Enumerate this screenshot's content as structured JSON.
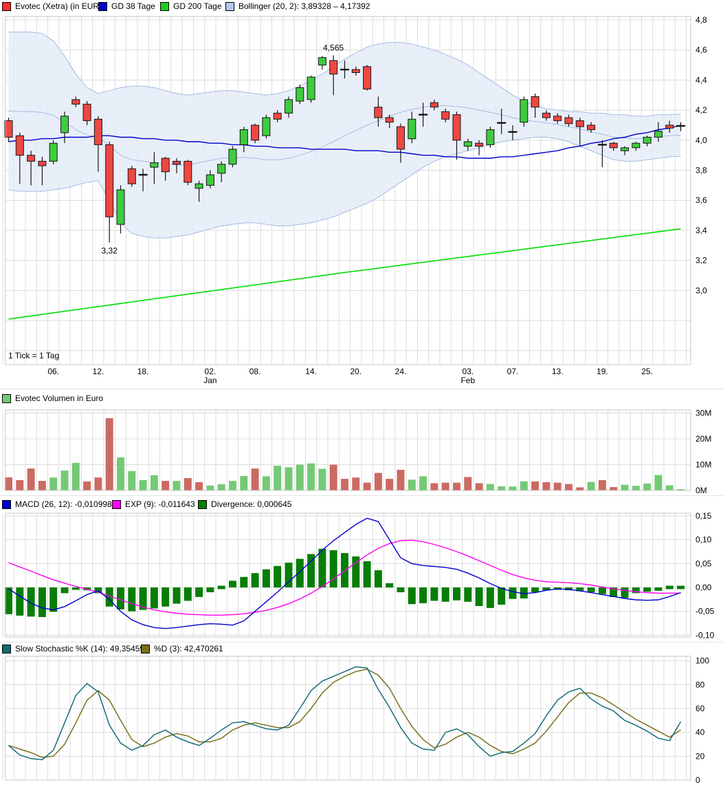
{
  "colors": {
    "candle_up": "#3ecc3e",
    "candle_down": "#ef4742",
    "candle_stroke": "#151515",
    "vol_up": "#74ca74",
    "vol_down": "#cb6a63",
    "macd_line": "#0000cc",
    "signal_line": "#ff00ee",
    "hist": "#077d07",
    "stoch_k": "#156d78",
    "stoch_d": "#7c701c",
    "gd38": "#0000cc",
    "gd200": "#00dd00",
    "band_fill": "#e4ebf8",
    "band_edge": "#a3bbe3",
    "grid": "#dcdcdc",
    "border": "#c6c6c6",
    "text_gray": "#8f8f8f"
  },
  "panels": {
    "price": {
      "legend": [
        {
          "swatch": "#ff2d2d",
          "label": "Evotec (Xetra) (in EUR)"
        },
        {
          "swatch": "#0000cc",
          "label": "GD 38 Tage"
        },
        {
          "swatch": "#22cc22",
          "label": "GD 200 Tage"
        },
        {
          "swatch": "#b4c6ea",
          "label": "Bollinger (20, 2): 3,89328 – 4,17392"
        }
      ],
      "footnote": "1 Tick = 1 Tag"
    },
    "volume": {
      "legend": [
        {
          "swatch": "#6fcc6f",
          "label": "Evotec Volumen in Euro"
        }
      ]
    },
    "macd": {
      "legend": [
        {
          "swatch": "#0000cc",
          "label": "MACD (26, 12): -0,010998"
        },
        {
          "swatch": "#ff00ff",
          "label": "EXP (9): -0,011643"
        },
        {
          "swatch": "#077d07",
          "label": "Divergence: 0,000645"
        }
      ]
    },
    "stoch": {
      "legend": [
        {
          "swatch": "#0e6b74",
          "label": "Slow Stochastic %K (14): 49,354594"
        },
        {
          "swatch": "#7a6e16",
          "label": "%D (3): 42,470261"
        }
      ]
    }
  },
  "chart_data": [
    {
      "type": "candlestick",
      "name": "Evotec (Xetra) (in EUR)",
      "x_unit": "1 Tick = 1 Tag",
      "ylim": [
        2.51,
        4.82
      ],
      "y_ticks": [
        {
          "v": 4.8,
          "l": "4,8"
        },
        {
          "v": 4.6,
          "l": "4,6"
        },
        {
          "v": 4.4,
          "l": "4,4"
        },
        {
          "v": 4.2,
          "l": "4,2"
        },
        {
          "v": 4.0,
          "l": "4,0"
        },
        {
          "v": 3.8,
          "l": "3,8"
        },
        {
          "v": 3.6,
          "l": "3,6"
        },
        {
          "v": 3.4,
          "l": "3,4"
        },
        {
          "v": 3.2,
          "l": "3,2"
        },
        {
          "v": 3.0,
          "l": "3,0"
        }
      ],
      "x_ticks": [
        {
          "i": 4,
          "l": "06."
        },
        {
          "i": 8,
          "l": "12."
        },
        {
          "i": 12,
          "l": "18."
        },
        {
          "i": 18,
          "l": "02.",
          "m": "Jan"
        },
        {
          "i": 22,
          "l": "08."
        },
        {
          "i": 27,
          "l": "14."
        },
        {
          "i": 31,
          "l": "20."
        },
        {
          "i": 35,
          "l": "24."
        },
        {
          "i": 41,
          "l": "03.",
          "m": "Feb"
        },
        {
          "i": 45,
          "l": "07."
        },
        {
          "i": 49,
          "l": "13."
        },
        {
          "i": 53,
          "l": "19."
        },
        {
          "i": 57,
          "l": "25."
        }
      ],
      "annotations": [
        {
          "i": 29,
          "text": "4,565",
          "pos": "above"
        },
        {
          "i": 9,
          "text": "3,32",
          "pos": "below"
        }
      ],
      "ohlc": [
        [
          4.13,
          4.15,
          3.99,
          4.02
        ],
        [
          4.03,
          4.05,
          3.71,
          3.9
        ],
        [
          3.9,
          3.93,
          3.7,
          3.86
        ],
        [
          3.86,
          3.89,
          3.7,
          3.83
        ],
        [
          3.86,
          4.0,
          3.84,
          3.98
        ],
        [
          4.05,
          4.19,
          3.98,
          4.16
        ],
        [
          4.27,
          4.29,
          4.22,
          4.24
        ],
        [
          4.24,
          4.26,
          4.1,
          4.13
        ],
        [
          4.14,
          4.16,
          3.79,
          3.97
        ],
        [
          3.97,
          3.99,
          3.32,
          3.49
        ],
        [
          3.44,
          3.7,
          3.38,
          3.67
        ],
        [
          3.81,
          3.83,
          3.69,
          3.71
        ],
        [
          3.77,
          3.81,
          3.66,
          3.77
        ],
        [
          3.82,
          3.92,
          3.71,
          3.85
        ],
        [
          3.88,
          3.89,
          3.73,
          3.79
        ],
        [
          3.86,
          3.88,
          3.78,
          3.84
        ],
        [
          3.86,
          3.87,
          3.7,
          3.72
        ],
        [
          3.68,
          3.73,
          3.59,
          3.71
        ],
        [
          3.7,
          3.8,
          3.68,
          3.77
        ],
        [
          3.78,
          3.86,
          3.72,
          3.84
        ],
        [
          3.84,
          3.96,
          3.82,
          3.94
        ],
        [
          3.97,
          4.09,
          3.92,
          4.07
        ],
        [
          4.1,
          4.11,
          3.98,
          4.0
        ],
        [
          4.03,
          4.17,
          4.01,
          4.15
        ],
        [
          4.18,
          4.2,
          4.12,
          4.14
        ],
        [
          4.18,
          4.29,
          4.15,
          4.27
        ],
        [
          4.26,
          4.37,
          4.24,
          4.35
        ],
        [
          4.27,
          4.43,
          4.25,
          4.42
        ],
        [
          4.5,
          4.56,
          4.47,
          4.55
        ],
        [
          4.53,
          4.565,
          4.3,
          4.44
        ],
        [
          4.47,
          4.53,
          4.41,
          4.47
        ],
        [
          4.47,
          4.49,
          4.43,
          4.45
        ],
        [
          4.49,
          4.5,
          4.33,
          4.34
        ],
        [
          4.22,
          4.29,
          4.09,
          4.15
        ],
        [
          4.15,
          4.17,
          4.08,
          4.12
        ],
        [
          4.09,
          4.11,
          3.85,
          3.94
        ],
        [
          4.01,
          4.19,
          3.98,
          4.14
        ],
        [
          4.17,
          4.25,
          4.09,
          4.17
        ],
        [
          4.25,
          4.27,
          4.2,
          4.22
        ],
        [
          4.19,
          4.21,
          4.12,
          4.14
        ],
        [
          4.17,
          4.19,
          3.87,
          4.0
        ],
        [
          3.96,
          4.01,
          3.93,
          3.99
        ],
        [
          3.98,
          4.0,
          3.9,
          3.96
        ],
        [
          3.97,
          4.09,
          3.95,
          4.07
        ],
        [
          4.12,
          4.21,
          4.04,
          4.11
        ],
        [
          4.06,
          4.1,
          4.0,
          4.05
        ],
        [
          4.12,
          4.29,
          4.09,
          4.27
        ],
        [
          4.29,
          4.31,
          4.15,
          4.22
        ],
        [
          4.18,
          4.2,
          4.13,
          4.15
        ],
        [
          4.16,
          4.18,
          4.11,
          4.13
        ],
        [
          4.15,
          4.17,
          4.09,
          4.11
        ],
        [
          4.13,
          4.15,
          3.96,
          4.09
        ],
        [
          4.1,
          4.12,
          4.05,
          4.07
        ],
        [
          3.97,
          4.0,
          3.82,
          3.97
        ],
        [
          3.98,
          3.99,
          3.93,
          3.95
        ],
        [
          3.93,
          3.96,
          3.9,
          3.95
        ],
        [
          3.95,
          3.99,
          3.93,
          3.98
        ],
        [
          3.98,
          4.03,
          3.96,
          4.02
        ],
        [
          4.02,
          4.12,
          3.99,
          4.06
        ],
        [
          4.1,
          4.13,
          4.05,
          4.08
        ],
        [
          4.1,
          4.12,
          4.06,
          4.09
        ]
      ],
      "gd38": [
        3.99,
        4.0,
        4.0,
        4.01,
        4.01,
        4.02,
        4.02,
        4.02,
        4.03,
        4.03,
        4.02,
        4.02,
        4.01,
        4.01,
        4.0,
        4.0,
        3.99,
        3.99,
        3.98,
        3.98,
        3.97,
        3.97,
        3.96,
        3.96,
        3.95,
        3.95,
        3.95,
        3.94,
        3.94,
        3.94,
        3.94,
        3.93,
        3.93,
        3.93,
        3.92,
        3.92,
        3.91,
        3.9,
        3.9,
        3.89,
        3.89,
        3.88,
        3.88,
        3.88,
        3.89,
        3.89,
        3.9,
        3.91,
        3.92,
        3.93,
        3.95,
        3.96,
        3.98,
        3.99,
        4.01,
        4.02,
        4.04,
        4.05,
        4.07,
        4.08,
        4.1
      ],
      "gd200": [
        {
          "i": 0,
          "v": 2.81
        },
        {
          "i": 30,
          "v": 3.12
        },
        {
          "i": 60,
          "v": 3.41
        }
      ],
      "bollinger_upper": [
        4.72,
        4.72,
        4.72,
        4.71,
        4.66,
        4.56,
        4.44,
        4.35,
        4.31,
        4.33,
        4.35,
        4.36,
        4.36,
        4.35,
        4.33,
        4.31,
        4.3,
        4.31,
        4.32,
        4.33,
        4.33,
        4.32,
        4.31,
        4.3,
        4.31,
        4.33,
        4.36,
        4.4,
        4.44,
        4.49,
        4.54,
        4.58,
        4.62,
        4.64,
        4.65,
        4.65,
        4.64,
        4.62,
        4.6,
        4.57,
        4.54,
        4.5,
        4.45,
        4.4,
        4.35,
        4.3,
        4.26,
        4.23,
        4.21,
        4.2,
        4.19,
        4.19,
        4.18,
        4.18,
        4.17,
        4.17,
        4.16,
        4.16,
        4.17,
        4.17,
        4.174
      ],
      "bollinger_lower": [
        3.67,
        3.66,
        3.66,
        3.66,
        3.67,
        3.68,
        3.7,
        3.72,
        3.73,
        3.6,
        3.45,
        3.38,
        3.36,
        3.35,
        3.35,
        3.36,
        3.37,
        3.39,
        3.41,
        3.43,
        3.44,
        3.45,
        3.45,
        3.44,
        3.43,
        3.43,
        3.44,
        3.45,
        3.47,
        3.49,
        3.52,
        3.55,
        3.58,
        3.62,
        3.67,
        3.72,
        3.77,
        3.82,
        3.86,
        3.89,
        3.91,
        3.93,
        3.95,
        3.97,
        3.99,
        4.0,
        4.01,
        4.02,
        4.02,
        4.01,
        3.99,
        3.96,
        3.93,
        3.9,
        3.87,
        3.86,
        3.86,
        3.87,
        3.88,
        3.89,
        3.893
      ],
      "bollinger_current": "3,89328 – 4,17392"
    },
    {
      "type": "bar",
      "name": "Evotec Volumen in Euro",
      "unit": "M",
      "y_ticks": [
        {
          "v": 30,
          "l": "30M"
        },
        {
          "v": 20,
          "l": "20M"
        },
        {
          "v": 10,
          "l": "10M"
        },
        {
          "v": 0,
          "l": "0M"
        }
      ],
      "values": [
        5.1,
        4.0,
        8.5,
        3.7,
        5.0,
        7.7,
        10.7,
        3.5,
        5.0,
        28.0,
        12.8,
        7.5,
        4.0,
        5.9,
        3.7,
        3.7,
        4.8,
        3.2,
        1.9,
        2.4,
        3.7,
        5.6,
        8.5,
        5.5,
        9.6,
        9.0,
        10.0,
        10.5,
        8.4,
        10.0,
        4.5,
        5.0,
        3.0,
        6.8,
        4.5,
        8.0,
        4.2,
        5.5,
        2.8,
        3.0,
        3.0,
        5.2,
        2.8,
        2.5,
        1.6,
        1.5,
        3.5,
        3.5,
        3.2,
        3.0,
        2.5,
        1.2,
        3.3,
        4.0,
        1.3,
        2.2,
        1.8,
        2.7,
        6.0,
        2.0,
        0.5
      ],
      "dir": [
        "d",
        "d",
        "d",
        "d",
        "u",
        "u",
        "u",
        "d",
        "d",
        "d",
        "u",
        "u",
        "u",
        "u",
        "d",
        "u",
        "d",
        "d",
        "u",
        "u",
        "u",
        "u",
        "d",
        "u",
        "u",
        "u",
        "u",
        "u",
        "u",
        "d",
        "d",
        "d",
        "d",
        "d",
        "d",
        "d",
        "u",
        "u",
        "d",
        "d",
        "d",
        "d",
        "d",
        "u",
        "u",
        "u",
        "u",
        "d",
        "d",
        "d",
        "d",
        "d",
        "u",
        "d",
        "d",
        "u",
        "u",
        "u",
        "u",
        "u",
        "u"
      ]
    },
    {
      "type": "macd",
      "name": "MACD (26, 12)",
      "y_ticks": [
        {
          "v": 0.15,
          "l": "0,15"
        },
        {
          "v": 0.1,
          "l": "0,10"
        },
        {
          "v": 0.05,
          "l": "0,05"
        },
        {
          "v": 0,
          "l": "0,00"
        },
        {
          "v": -0.05,
          "l": "-0,05"
        },
        {
          "v": -0.1,
          "l": "-0,10"
        }
      ],
      "macd_value": "-0,010998",
      "exp_value": "-0,011643",
      "divergence_value": "0,000645",
      "histogram": [
        -0.056,
        -0.059,
        -0.061,
        -0.062,
        -0.051,
        -0.012,
        -0.005,
        -0.006,
        -0.012,
        -0.04,
        -0.046,
        -0.05,
        -0.047,
        -0.044,
        -0.04,
        -0.034,
        -0.028,
        -0.02,
        -0.01,
        -0.004,
        0.014,
        0.022,
        0.03,
        0.038,
        0.045,
        0.052,
        0.06,
        0.07,
        0.081,
        0.078,
        0.072,
        0.065,
        0.055,
        0.036,
        0.009,
        -0.01,
        -0.035,
        -0.033,
        -0.028,
        -0.03,
        -0.027,
        -0.03,
        -0.039,
        -0.043,
        -0.036,
        -0.024,
        -0.023,
        -0.01,
        -0.006,
        -0.005,
        -0.006,
        -0.008,
        -0.01,
        -0.014,
        -0.02,
        -0.022,
        -0.012,
        -0.009,
        -0.007,
        -0.004,
        0.001
      ],
      "macd": [
        -0.003,
        -0.018,
        -0.033,
        -0.043,
        -0.047,
        -0.04,
        -0.028,
        -0.015,
        -0.007,
        -0.025,
        -0.05,
        -0.068,
        -0.078,
        -0.084,
        -0.086,
        -0.084,
        -0.081,
        -0.078,
        -0.076,
        -0.077,
        -0.079,
        -0.07,
        -0.05,
        -0.03,
        -0.01,
        0.012,
        0.033,
        0.055,
        0.078,
        0.098,
        0.115,
        0.132,
        0.145,
        0.138,
        0.1,
        0.062,
        0.05,
        0.046,
        0.044,
        0.042,
        0.038,
        0.03,
        0.02,
        0.008,
        -0.002,
        -0.009,
        -0.013,
        -0.011,
        -0.006,
        -0.003,
        -0.004,
        -0.007,
        -0.011,
        -0.015,
        -0.019,
        -0.023,
        -0.026,
        -0.027,
        -0.026,
        -0.019,
        -0.011
      ],
      "signal": [
        0.052,
        0.043,
        0.034,
        0.025,
        0.016,
        0.009,
        0.002,
        -0.004,
        -0.01,
        -0.018,
        -0.026,
        -0.034,
        -0.041,
        -0.047,
        -0.051,
        -0.054,
        -0.056,
        -0.057,
        -0.058,
        -0.058,
        -0.057,
        -0.055,
        -0.052,
        -0.048,
        -0.042,
        -0.034,
        -0.024,
        -0.012,
        0.002,
        0.018,
        0.035,
        0.052,
        0.068,
        0.082,
        0.092,
        0.098,
        0.099,
        0.096,
        0.09,
        0.083,
        0.075,
        0.066,
        0.056,
        0.046,
        0.036,
        0.027,
        0.02,
        0.015,
        0.012,
        0.011,
        0.01,
        0.008,
        0.005,
        0.001,
        -0.003,
        -0.006,
        -0.009,
        -0.011,
        -0.012,
        -0.012,
        -0.012
      ]
    },
    {
      "type": "line",
      "name": "Slow Stochastic",
      "y_ticks": [
        {
          "v": 100,
          "l": "100"
        },
        {
          "v": 80,
          "l": "80"
        },
        {
          "v": 60,
          "l": "60"
        },
        {
          "v": 40,
          "l": "40"
        },
        {
          "v": 20,
          "l": "20"
        },
        {
          "v": 0,
          "l": "0"
        }
      ],
      "k_value": "49,354594",
      "d_value": "42,470261",
      "series": [
        {
          "name": "%K",
          "values": [
            29,
            21,
            18,
            17,
            25,
            48,
            71,
            81,
            74,
            46,
            31,
            25,
            29,
            38,
            42,
            36,
            32,
            29,
            35,
            42,
            48,
            49,
            46,
            43,
            42,
            46,
            60,
            75,
            83,
            87,
            91,
            95,
            94,
            76,
            61,
            44,
            31,
            26,
            25,
            40,
            43,
            38,
            28,
            20,
            23,
            24,
            31,
            39,
            54,
            67,
            74,
            77,
            68,
            62,
            58,
            50,
            46,
            41,
            35,
            33,
            49
          ]
        },
        {
          "name": "%D",
          "values": [
            29,
            26,
            23,
            19,
            20,
            30,
            48,
            67,
            75,
            67,
            50,
            34,
            28,
            31,
            36,
            39,
            37,
            32,
            32,
            35,
            42,
            46,
            48,
            46,
            44,
            44,
            49,
            60,
            73,
            82,
            87,
            91,
            93,
            88,
            77,
            60,
            45,
            34,
            27,
            30,
            36,
            40,
            36,
            29,
            24,
            22,
            26,
            31,
            41,
            53,
            65,
            73,
            73,
            69,
            63,
            57,
            51,
            46,
            41,
            36,
            42
          ]
        }
      ]
    }
  ]
}
